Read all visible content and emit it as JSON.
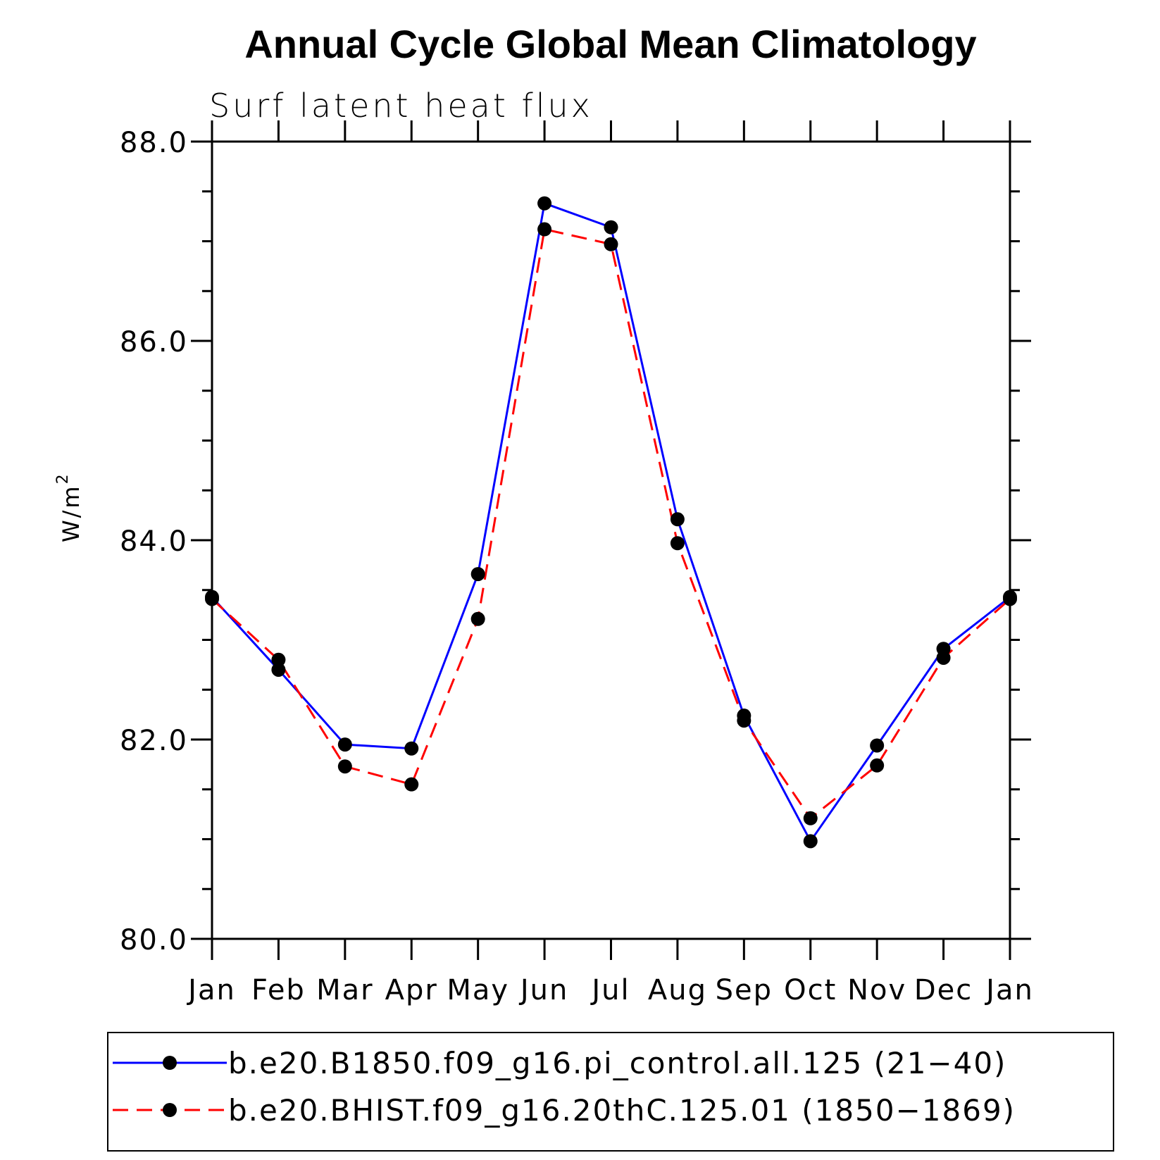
{
  "chart_data": {
    "type": "line",
    "title": "Annual Cycle Global Mean Climatology",
    "subtitle": "Surf latent heat flux",
    "ylabel": "W/m",
    "ylabel_superscript": "2",
    "xlabel": "",
    "categories": [
      "Jan",
      "Feb",
      "Mar",
      "Apr",
      "May",
      "Jun",
      "Jul",
      "Aug",
      "Sep",
      "Oct",
      "Nov",
      "Dec",
      "Jan"
    ],
    "ylim": [
      80.0,
      88.0
    ],
    "yticks": [
      "80.0",
      "82.0",
      "84.0",
      "86.0",
      "88.0"
    ],
    "grid": false,
    "legend_placement": "bottom",
    "series": [
      {
        "name": "b.e20.B1850.f09_g16.pi_control.all.125 (21−40)",
        "color": "#0000ff",
        "style": "solid",
        "values": [
          83.43,
          82.7,
          81.95,
          81.91,
          83.66,
          87.38,
          87.14,
          84.21,
          82.24,
          80.98,
          81.94,
          82.91,
          83.43
        ]
      },
      {
        "name": "b.e20.BHIST.f09_g16.20thC.125.01 (1850−1869)",
        "color": "#ff0000",
        "style": "dashed",
        "values": [
          83.41,
          82.8,
          81.73,
          81.55,
          83.21,
          87.12,
          86.97,
          83.97,
          82.19,
          81.21,
          81.74,
          82.82,
          83.41
        ]
      }
    ]
  }
}
